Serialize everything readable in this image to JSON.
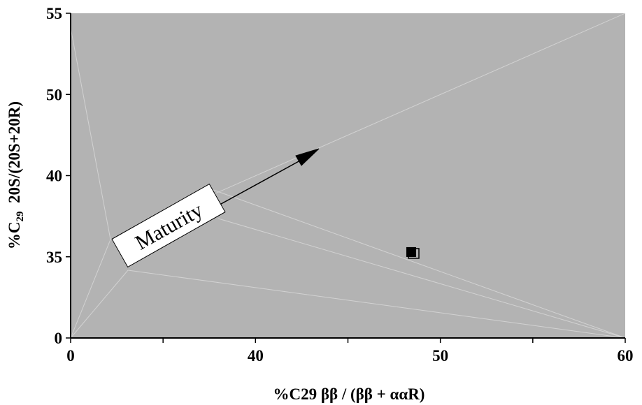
{
  "chart_data": {
    "type": "scatter",
    "title": "",
    "xlabel": "%C29 ββ / (ββ + ααR)",
    "ylabel_parts": {
      "prefix": "%C",
      "subscript": "29",
      "suffix": "  20S/(20S+20R)"
    },
    "x_ticks": [
      {
        "label": "0",
        "major": true
      },
      {
        "label": "",
        "major": false
      },
      {
        "label": "40",
        "major": true
      },
      {
        "label": "",
        "major": false
      },
      {
        "label": "50",
        "major": true
      },
      {
        "label": "",
        "major": false
      },
      {
        "label": "60",
        "major": true
      }
    ],
    "y_ticks": [
      {
        "label": "0"
      },
      {
        "label": "35"
      },
      {
        "label": "40"
      },
      {
        "label": "50"
      },
      {
        "label": "55"
      }
    ],
    "points": [
      {
        "x_index": 3.7,
        "y_index": 1.05
      }
    ],
    "annotation": {
      "text": "Maturity"
    },
    "grid": false,
    "legend": "none",
    "plot_background": "#b3b3b3",
    "marker_color": "#000000"
  }
}
